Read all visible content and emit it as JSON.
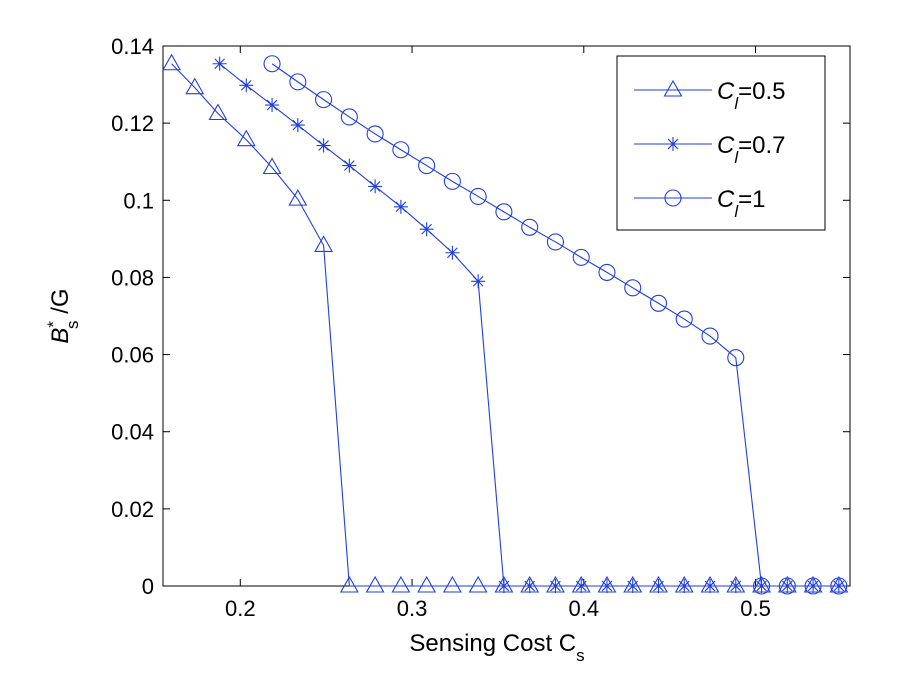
{
  "chart_data": {
    "type": "line",
    "title": "",
    "xlabel": {
      "base": "Sensing Cost C",
      "sub": "s"
    },
    "ylabel": {
      "base": "B",
      "sup": "*",
      "sub": "s",
      "suffix": " /G"
    },
    "xlim": [
      0.155,
      0.555
    ],
    "ylim": [
      0,
      0.14
    ],
    "xticks": [
      0.2,
      0.3,
      0.4,
      0.5
    ],
    "xtick_labels": [
      "0.2",
      "0.3",
      "0.4",
      "0.5"
    ],
    "yticks": [
      0,
      0.02,
      0.04,
      0.06,
      0.08,
      0.1,
      0.12,
      0.14
    ],
    "ytick_labels": [
      "0",
      "0.02",
      "0.04",
      "0.06",
      "0.08",
      "0.1",
      "0.12",
      "0.14"
    ],
    "grid": false,
    "legend_position": "top-right",
    "color": "#1f3fe0",
    "series": [
      {
        "name": "C_l=0.5",
        "legend": {
          "base": "C",
          "sub": "l",
          "value": "=0.5"
        },
        "marker": "triangle",
        "x": [
          0.16,
          0.1735,
          0.187,
          0.2035,
          0.2185,
          0.2335,
          0.2485,
          0.2635,
          0.2785,
          0.2935,
          0.3085,
          0.3235,
          0.3385,
          0.3535,
          0.3685,
          0.3835,
          0.3985,
          0.4135,
          0.4285,
          0.4435,
          0.4585,
          0.4735,
          0.4885,
          0.5035,
          0.5185,
          0.5335,
          0.5485
        ],
        "y": [
          0.1354,
          0.1292,
          0.1225,
          0.1157,
          0.1085,
          0.1003,
          0.0883,
          0,
          0,
          0,
          0,
          0,
          0,
          0,
          0,
          0,
          0,
          0,
          0,
          0,
          0,
          0,
          0,
          0,
          0,
          0,
          0
        ]
      },
      {
        "name": "C_l=0.7",
        "legend": {
          "base": "C",
          "sub": "l",
          "value": "=0.7"
        },
        "marker": "asterisk",
        "x": [
          0.188,
          0.2035,
          0.2185,
          0.2335,
          0.2485,
          0.2635,
          0.2785,
          0.2935,
          0.3085,
          0.3235,
          0.3385,
          0.3535,
          0.3685,
          0.3835,
          0.3985,
          0.4135,
          0.4285,
          0.4435,
          0.4585,
          0.4735,
          0.4885,
          0.5035,
          0.5185,
          0.5335,
          0.5485
        ],
        "y": [
          0.1354,
          0.1298,
          0.1247,
          0.1195,
          0.1142,
          0.109,
          0.1036,
          0.0983,
          0.0925,
          0.0864,
          0.079,
          0,
          0,
          0,
          0,
          0,
          0,
          0,
          0,
          0,
          0,
          0,
          0,
          0,
          0
        ]
      },
      {
        "name": "C_l=1",
        "legend": {
          "base": "C",
          "sub": "l",
          "value": "=1"
        },
        "marker": "circle",
        "x": [
          0.2185,
          0.2335,
          0.2485,
          0.2635,
          0.2785,
          0.2935,
          0.3085,
          0.3235,
          0.3385,
          0.3535,
          0.3685,
          0.3835,
          0.3985,
          0.4135,
          0.4285,
          0.4435,
          0.4585,
          0.4735,
          0.4885,
          0.5035,
          0.5185,
          0.5335,
          0.5485
        ],
        "y": [
          0.1354,
          0.1307,
          0.1261,
          0.1216,
          0.1172,
          0.1131,
          0.109,
          0.1049,
          0.101,
          0.097,
          0.093,
          0.0892,
          0.0852,
          0.0813,
          0.0773,
          0.0733,
          0.0692,
          0.0648,
          0.0592,
          0,
          0,
          0,
          0
        ]
      }
    ]
  }
}
